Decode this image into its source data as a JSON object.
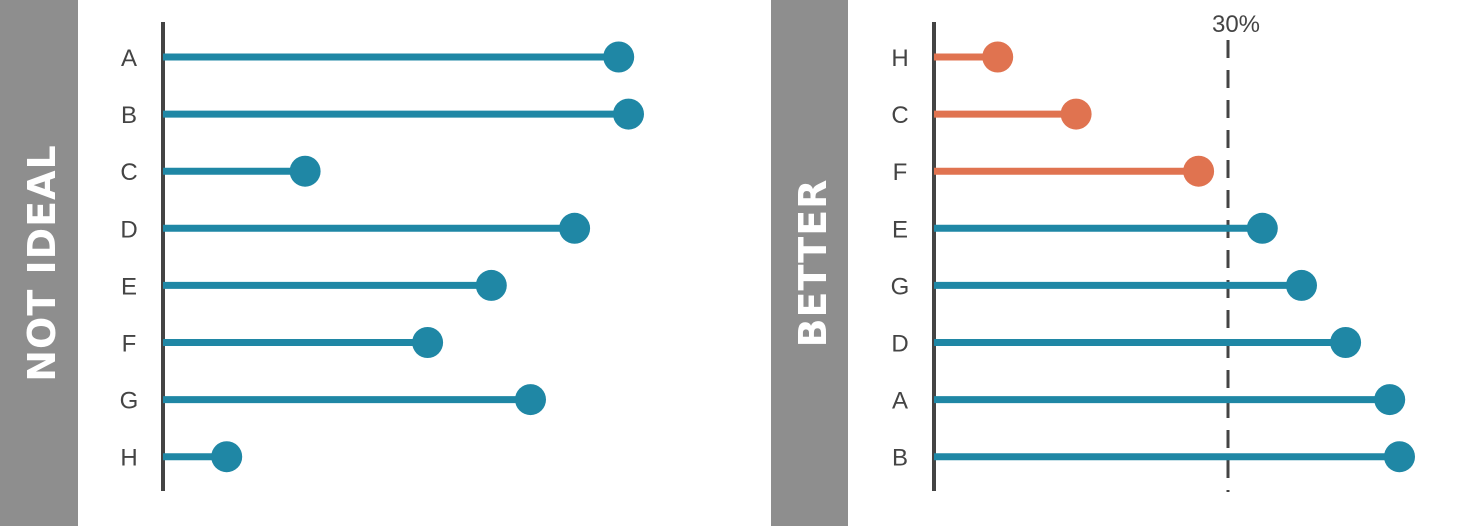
{
  "colors": {
    "primary": "#1f87a5",
    "highlight": "#e07350",
    "band": "#8e8e8e",
    "axis": "#444444"
  },
  "chart_data": [
    {
      "type": "lollipop",
      "panel_label": "NOT IDEAL",
      "orientation": "horizontal",
      "xlim": [
        0,
        50
      ],
      "categories": [
        "A",
        "B",
        "C",
        "D",
        "E",
        "F",
        "G",
        "H"
      ],
      "values": [
        46.5,
        47.5,
        14.5,
        42.0,
        33.5,
        27.0,
        37.5,
        6.5
      ],
      "highlight_below": null,
      "reference_line": null
    },
    {
      "type": "lollipop",
      "panel_label": "BETTER",
      "orientation": "horizontal",
      "xlim": [
        0,
        50
      ],
      "categories": [
        "H",
        "C",
        "F",
        "E",
        "G",
        "D",
        "A",
        "B"
      ],
      "values": [
        6.5,
        14.5,
        27.0,
        33.5,
        37.5,
        42.0,
        46.5,
        47.5
      ],
      "highlight_below": 30,
      "reference_line": {
        "value": 30,
        "label": "30%"
      }
    }
  ]
}
